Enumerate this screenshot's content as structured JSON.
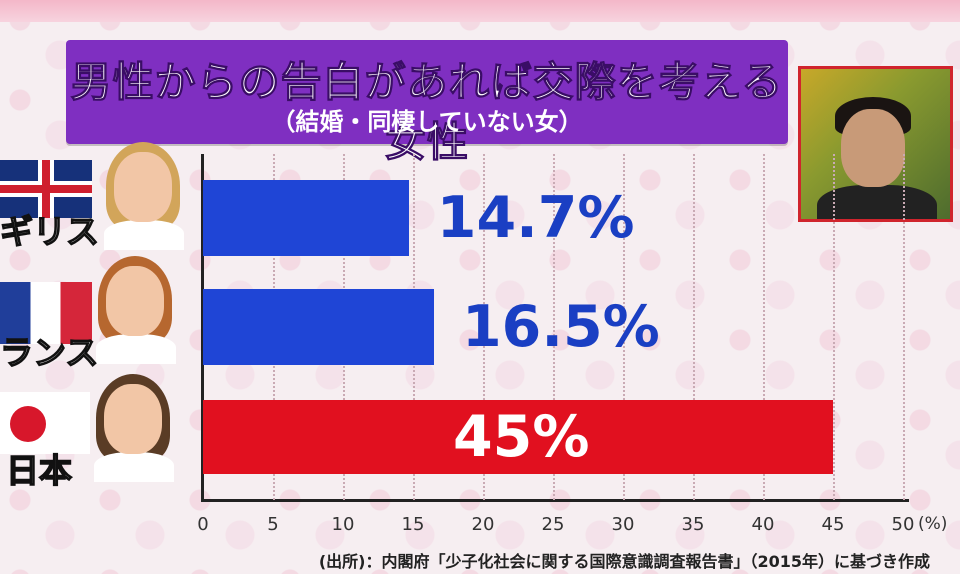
{
  "title": "男性からの告白があれば交際を考える女性",
  "subtitle": "（結婚・同棲していない女）",
  "source": "(出所)：内閣府「少子化社会に関する国際意識調査報告書」（2015年）に基づき作成",
  "colors": {
    "title_bg": "#7f2fc1",
    "bar_blue": "#1f45d6",
    "bar_red": "#e1101f",
    "label_blue": "#1a3fc3"
  },
  "chart_data": {
    "type": "bar",
    "orientation": "horizontal",
    "categories": [
      "ギリス",
      "ランス",
      "日本"
    ],
    "values": [
      14.7,
      16.5,
      45
    ],
    "value_labels": [
      "14.7%",
      "16.5%",
      "45%"
    ],
    "title": "男性からの告白があれば交際を考える女性",
    "subtitle": "（結婚・同棲していない女）",
    "xlabel": "",
    "ylabel": "",
    "x_unit": "(%)",
    "xlim": [
      0,
      50
    ],
    "x_ticks": [
      "0",
      "5",
      "10",
      "15",
      "20",
      "25",
      "30",
      "35",
      "40",
      "45",
      "50"
    ],
    "grid": true,
    "bar_colors": [
      "#1f45d6",
      "#1f45d6",
      "#e1101f"
    ]
  }
}
